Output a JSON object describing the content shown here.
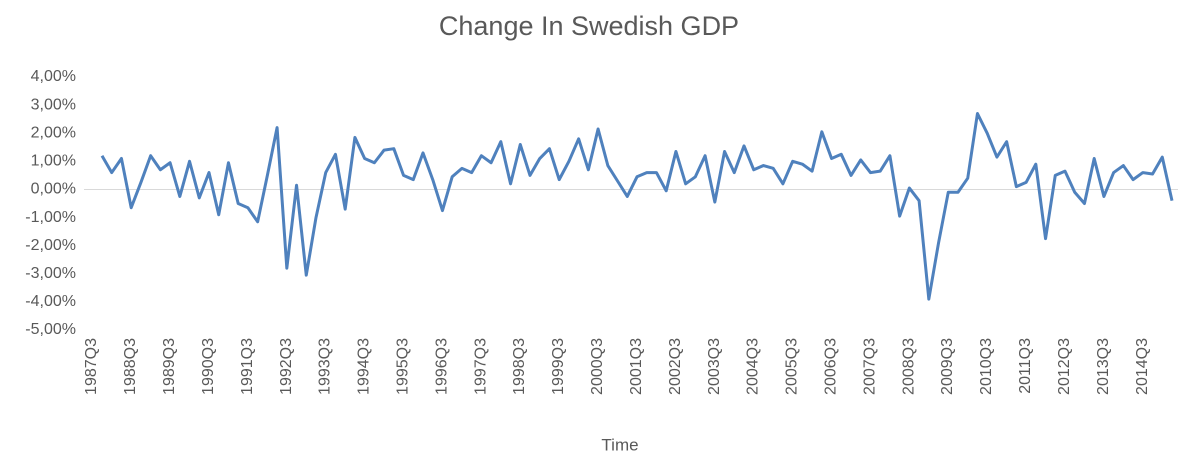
{
  "chart_data": {
    "type": "line",
    "title": "Change In Swedish GDP",
    "x_label": "Time",
    "categories": [
      "1987Q3",
      null,
      null,
      null,
      "1988Q3",
      null,
      null,
      null,
      "1989Q3",
      null,
      null,
      null,
      "1990Q3",
      null,
      null,
      null,
      "1991Q3",
      null,
      null,
      null,
      "1992Q3",
      null,
      null,
      null,
      "1993Q3",
      null,
      null,
      null,
      "1994Q3",
      null,
      null,
      null,
      "1995Q3",
      null,
      null,
      null,
      "1996Q3",
      null,
      null,
      null,
      "1997Q3",
      null,
      null,
      null,
      "1998Q3",
      null,
      null,
      null,
      "1999Q3",
      null,
      null,
      null,
      "2000Q3",
      null,
      null,
      null,
      "2001Q3",
      null,
      null,
      null,
      "2002Q3",
      null,
      null,
      null,
      "2003Q3",
      null,
      null,
      null,
      "2004Q3",
      null,
      null,
      null,
      "2005Q3",
      null,
      null,
      null,
      "2006Q3",
      null,
      null,
      null,
      "2007Q3",
      null,
      null,
      null,
      "2008Q3",
      null,
      null,
      null,
      "2009Q3",
      null,
      null,
      null,
      "2010Q3",
      null,
      null,
      null,
      "2011Q3",
      null,
      null,
      null,
      "2012Q3",
      null,
      null,
      null,
      "2013Q3",
      null,
      null,
      null,
      "2014Q3",
      null,
      null
    ],
    "series": [
      {
        "name": "Change In Swedish GDP",
        "color": "#4f81bd",
        "values": [
          1.2,
          0.6,
          1.1,
          -0.65,
          0.25,
          1.2,
          0.7,
          0.95,
          -0.25,
          1.0,
          -0.3,
          0.6,
          -0.9,
          0.95,
          -0.5,
          -0.65,
          -1.15,
          0.5,
          2.2,
          -2.8,
          0.15,
          -3.05,
          -1.0,
          0.6,
          1.25,
          -0.7,
          1.85,
          1.1,
          0.95,
          1.4,
          1.45,
          0.5,
          0.35,
          1.3,
          0.35,
          -0.75,
          0.45,
          0.75,
          0.6,
          1.2,
          0.95,
          1.7,
          0.2,
          1.6,
          0.5,
          1.1,
          1.45,
          0.35,
          1.0,
          1.8,
          0.7,
          2.15,
          0.85,
          0.3,
          -0.25,
          0.45,
          0.6,
          0.6,
          -0.05,
          1.35,
          0.2,
          0.45,
          1.2,
          -0.45,
          1.35,
          0.6,
          1.55,
          0.7,
          0.85,
          0.75,
          0.2,
          1.0,
          0.9,
          0.65,
          2.05,
          1.1,
          1.25,
          0.5,
          1.05,
          0.6,
          0.65,
          1.2,
          -0.95,
          0.05,
          -0.4,
          -3.9,
          -1.9,
          -0.1,
          -0.1,
          0.4,
          2.7,
          2.0,
          1.15,
          1.7,
          0.1,
          0.25,
          0.9,
          -1.75,
          0.5,
          0.65,
          -0.1,
          -0.5,
          1.1,
          -0.25,
          0.6,
          0.85,
          0.35,
          0.6,
          0.55,
          1.15,
          -0.4
        ]
      }
    ],
    "ylim": [
      -5,
      4
    ],
    "yticks": [
      {
        "value": 4,
        "label": "4,00%"
      },
      {
        "value": 3,
        "label": "3,00%"
      },
      {
        "value": 2,
        "label": "2,00%"
      },
      {
        "value": 1,
        "label": "1,00%"
      },
      {
        "value": 0,
        "label": "0,00%"
      },
      {
        "value": -1,
        "label": "-1,00%"
      },
      {
        "value": -2,
        "label": "-2,00%"
      },
      {
        "value": -3,
        "label": "-3,00%"
      },
      {
        "value": -4,
        "label": "-4,00%"
      },
      {
        "value": -5,
        "label": "-5,00%"
      }
    ]
  }
}
